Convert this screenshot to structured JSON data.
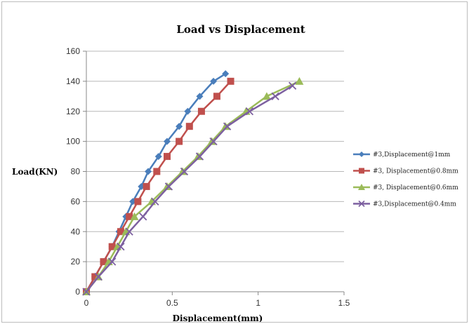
{
  "chart_data": {
    "type": "line",
    "title": "Load vs Displacement",
    "xlabel": "Displacement(mm)",
    "ylabel": "Load(KN)",
    "xlim": [
      0,
      1.5
    ],
    "ylim": [
      0,
      160
    ],
    "xticks": [
      "0",
      "0.5",
      "1",
      "1.5"
    ],
    "yticks": [
      "0",
      "20",
      "40",
      "60",
      "80",
      "100",
      "120",
      "140",
      "160"
    ],
    "grid": "horizontal",
    "legend_position": "right",
    "series": [
      {
        "name": "#3,Displacement@1mm",
        "color": "#4a7ebb",
        "marker": "diamond",
        "points": [
          [
            0,
            0
          ],
          [
            0.05,
            10
          ],
          [
            0.1,
            20
          ],
          [
            0.15,
            30
          ],
          [
            0.19,
            40
          ],
          [
            0.23,
            50
          ],
          [
            0.27,
            60
          ],
          [
            0.32,
            70
          ],
          [
            0.36,
            80
          ],
          [
            0.42,
            90
          ],
          [
            0.47,
            100
          ],
          [
            0.54,
            110
          ],
          [
            0.59,
            120
          ],
          [
            0.66,
            130
          ],
          [
            0.74,
            140
          ],
          [
            0.81,
            145
          ]
        ]
      },
      {
        "name": "#3, Displacement@0.8mm",
        "color": "#c0504d",
        "marker": "square",
        "points": [
          [
            0,
            0
          ],
          [
            0.05,
            10
          ],
          [
            0.1,
            20
          ],
          [
            0.15,
            30
          ],
          [
            0.2,
            40
          ],
          [
            0.25,
            50
          ],
          [
            0.3,
            60
          ],
          [
            0.35,
            70
          ],
          [
            0.41,
            80
          ],
          [
            0.47,
            90
          ],
          [
            0.54,
            100
          ],
          [
            0.6,
            110
          ],
          [
            0.67,
            120
          ],
          [
            0.76,
            130
          ],
          [
            0.84,
            140
          ]
        ]
      },
      {
        "name": "#3, Displacement@0.6mm",
        "color": "#9bbb59",
        "marker": "triangle",
        "points": [
          [
            0,
            0
          ],
          [
            0.07,
            10
          ],
          [
            0.13,
            20
          ],
          [
            0.18,
            30
          ],
          [
            0.23,
            40
          ],
          [
            0.28,
            50
          ],
          [
            0.38,
            60
          ],
          [
            0.47,
            70
          ],
          [
            0.56,
            80
          ],
          [
            0.65,
            90
          ],
          [
            0.73,
            100
          ],
          [
            0.81,
            110
          ],
          [
            0.93,
            120
          ],
          [
            1.05,
            130
          ],
          [
            1.24,
            140
          ]
        ]
      },
      {
        "name": "#3,Displacement@0.4mm",
        "color": "#7d60a0",
        "marker": "cross",
        "points": [
          [
            0,
            0
          ],
          [
            0.07,
            10
          ],
          [
            0.15,
            20
          ],
          [
            0.2,
            30
          ],
          [
            0.25,
            40
          ],
          [
            0.33,
            50
          ],
          [
            0.4,
            60
          ],
          [
            0.48,
            70
          ],
          [
            0.57,
            80
          ],
          [
            0.66,
            90
          ],
          [
            0.74,
            100
          ],
          [
            0.82,
            110
          ],
          [
            0.95,
            120
          ],
          [
            1.1,
            130
          ],
          [
            1.2,
            137
          ]
        ]
      }
    ]
  }
}
